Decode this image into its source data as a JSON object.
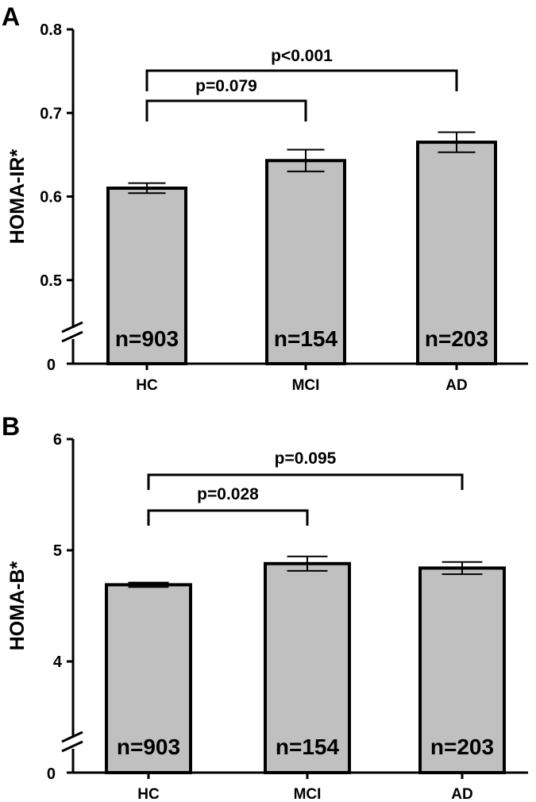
{
  "chart_data": [
    {
      "type": "bar",
      "panel": "A",
      "ylabel": "HOMA-IR*",
      "categories": [
        "HC",
        "MCI",
        "AD"
      ],
      "values": [
        0.61,
        0.643,
        0.665
      ],
      "errors": [
        0.006,
        0.013,
        0.012
      ],
      "n_labels": [
        "n=903",
        "n=154",
        "n=203"
      ],
      "ylim": [
        0.4,
        0.8
      ],
      "axis_break": true,
      "yticks": [
        0.5,
        0.6,
        0.7,
        0.8
      ],
      "yticklabels": [
        "0.5",
        "0.6",
        "0.7",
        "0.8"
      ],
      "zero_label": "0",
      "bar_color": "#c0c0c0",
      "comparisons": [
        {
          "from": 0,
          "to": 1,
          "label": "p=0.079"
        },
        {
          "from": 0,
          "to": 2,
          "label": "p<0.001"
        }
      ]
    },
    {
      "type": "bar",
      "panel": "B",
      "ylabel": "HOMA-B*",
      "categories": [
        "HC",
        "MCI",
        "AD"
      ],
      "values": [
        4.69,
        4.88,
        4.84
      ],
      "errors": [
        0.02,
        0.065,
        0.055
      ],
      "n_labels": [
        "n=903",
        "n=154",
        "n=203"
      ],
      "ylim": [
        3,
        6
      ],
      "axis_break": true,
      "yticks": [
        4,
        5,
        6
      ],
      "yticklabels": [
        "4",
        "5",
        "6"
      ],
      "zero_label": "0",
      "bar_color": "#c0c0c0",
      "comparisons": [
        {
          "from": 0,
          "to": 1,
          "label": "p=0.028"
        },
        {
          "from": 0,
          "to": 2,
          "label": "p=0.095"
        }
      ]
    }
  ]
}
